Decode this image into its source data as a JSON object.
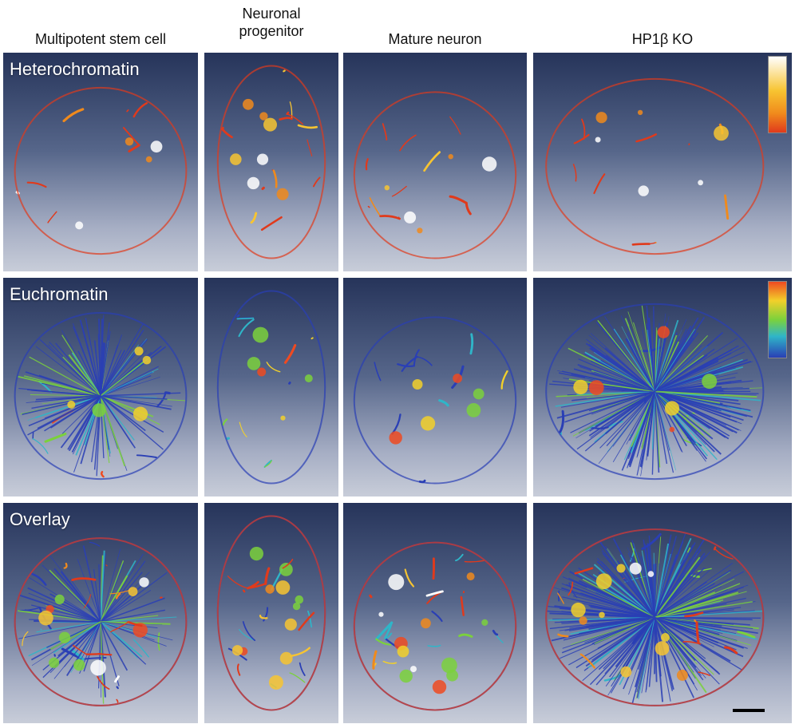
{
  "columns": [
    {
      "label": "Multipotent stem cell"
    },
    {
      "label": "Neuronal\nprogenitor"
    },
    {
      "label": "Mature neuron"
    },
    {
      "label": "HP1β KO"
    }
  ],
  "rows": [
    {
      "label": "Heterochromatin",
      "colormap": "heat"
    },
    {
      "label": "Euchromatin",
      "colormap": "jet"
    },
    {
      "label": "Overlay",
      "colormap": "mixed"
    }
  ],
  "colors": {
    "heat": [
      "#e03a1c",
      "#f08a1c",
      "#f7c431",
      "#ffffff"
    ],
    "jet": [
      "#2a3fb5",
      "#2fb5c8",
      "#7bd13c",
      "#f2d02a",
      "#ef4a21"
    ]
  }
}
